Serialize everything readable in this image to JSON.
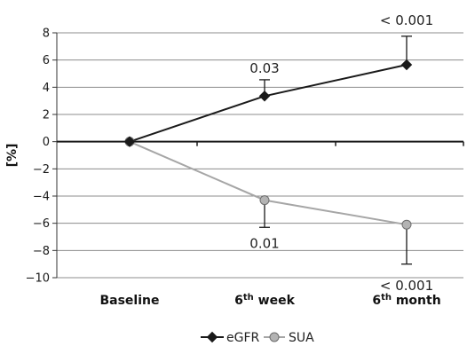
{
  "chart_data": {
    "type": "line",
    "title": "",
    "xlabel": "",
    "ylabel": "[%]",
    "ylim": [
      -10,
      8
    ],
    "yticks": [
      8,
      6,
      4,
      2,
      0,
      -2,
      -4,
      -6,
      -8,
      -10
    ],
    "ytick_labels": [
      "8",
      "6",
      "4",
      "2",
      "0",
      "−2",
      "−4",
      "−6",
      "−8",
      "−10"
    ],
    "grid": true,
    "legend_position": "bottom",
    "categories": [
      {
        "base": "Baseline",
        "sup": ""
      },
      {
        "base": "6",
        "sup": "th",
        "rest": " week"
      },
      {
        "base": "6",
        "sup": "th",
        "rest": " month"
      }
    ],
    "series": [
      {
        "name": "eGFR",
        "marker": "diamond",
        "color": "#1a1a1a",
        "values": [
          0,
          3.35,
          5.65
        ],
        "error_upper": [
          null,
          1.2,
          2.1
        ],
        "error_lower": [
          null,
          null,
          null
        ]
      },
      {
        "name": "SUA",
        "marker": "circle",
        "color": "#a6a6a6",
        "values": [
          0,
          -4.3,
          -6.1
        ],
        "error_upper": [
          null,
          null,
          null
        ],
        "error_lower": [
          null,
          2.0,
          2.9
        ]
      }
    ],
    "annotations": [
      {
        "text": "0.03",
        "category": 1,
        "y": 5.4
      },
      {
        "text": "< 0.001",
        "category": 2,
        "y": 8.9
      },
      {
        "text": "0.01",
        "category": 1,
        "y": -7.5
      },
      {
        "text": "< 0.001",
        "category": 2,
        "y": -10.6
      }
    ]
  }
}
